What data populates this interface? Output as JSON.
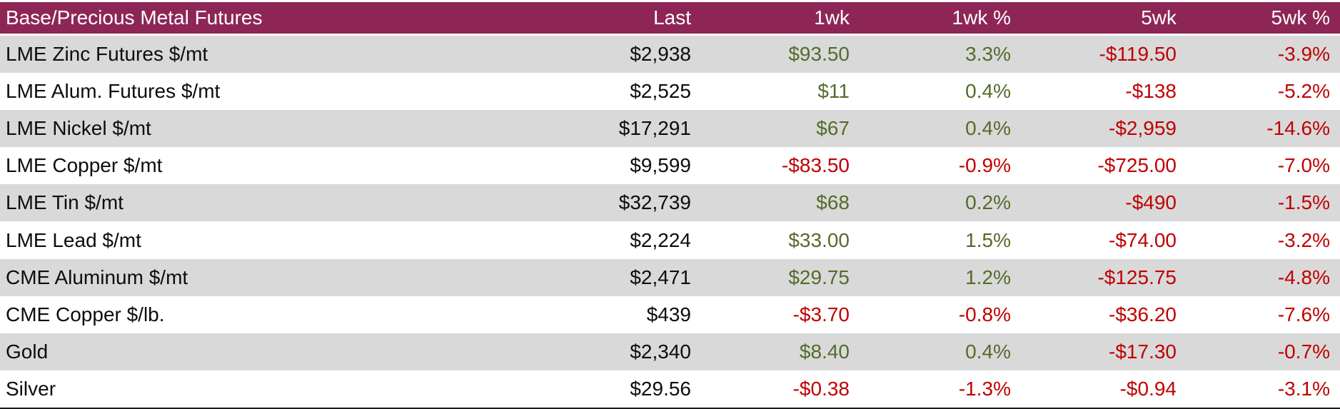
{
  "table": {
    "title": "Base/Precious Metal Futures",
    "columns": [
      "Last",
      "1wk",
      "1wk %",
      "5wk",
      "5wk %"
    ],
    "rows": [
      {
        "label": "LME Zinc Futures $/mt",
        "last": "$2,938",
        "wk1": "$93.50",
        "wk1_pct": "3.3%",
        "wk5": "-$119.50",
        "wk5_pct": "-3.9%"
      },
      {
        "label": "LME Alum. Futures $/mt",
        "last": "$2,525",
        "wk1": "$11",
        "wk1_pct": "0.4%",
        "wk5": "-$138",
        "wk5_pct": "-5.2%"
      },
      {
        "label": "LME Nickel $/mt",
        "last": "$17,291",
        "wk1": "$67",
        "wk1_pct": "0.4%",
        "wk5": "-$2,959",
        "wk5_pct": "-14.6%"
      },
      {
        "label": "LME Copper $/mt",
        "last": "$9,599",
        "wk1": "-$83.50",
        "wk1_pct": "-0.9%",
        "wk5": "-$725.00",
        "wk5_pct": "-7.0%"
      },
      {
        "label": "LME Tin $/mt",
        "last": "$32,739",
        "wk1": "$68",
        "wk1_pct": "0.2%",
        "wk5": "-$490",
        "wk5_pct": "-1.5%"
      },
      {
        "label": "LME Lead $/mt",
        "last": "$2,224",
        "wk1": "$33.00",
        "wk1_pct": "1.5%",
        "wk5": "-$74.00",
        "wk5_pct": "-3.2%"
      },
      {
        "label": "CME Aluminum $/mt",
        "last": "$2,471",
        "wk1": "$29.75",
        "wk1_pct": "1.2%",
        "wk5": "-$125.75",
        "wk5_pct": "-4.8%"
      },
      {
        "label": "CME Copper $/lb.",
        "last": "$439",
        "wk1": "-$3.70",
        "wk1_pct": "-0.8%",
        "wk5": "-$36.20",
        "wk5_pct": "-7.6%"
      },
      {
        "label": "Gold",
        "last": "$2,340",
        "wk1": "$8.40",
        "wk1_pct": "0.4%",
        "wk5": "-$17.30",
        "wk5_pct": "-0.7%"
      },
      {
        "label": "Silver",
        "last": "$29.56",
        "wk1": "-$0.38",
        "wk1_pct": "-1.3%",
        "wk5": "-$0.94",
        "wk5_pct": "-3.1%"
      }
    ]
  },
  "colors": {
    "header_bg": "#8E2655",
    "alt_row_bg": "#D9D9D9",
    "positive_text": "#556B2B",
    "negative_text": "#C00000"
  },
  "chart_data": {
    "type": "table",
    "title": "Base/Precious Metal Futures",
    "columns": [
      "Last",
      "1wk",
      "1wk %",
      "5wk",
      "5wk %"
    ],
    "rows": [
      {
        "name": "LME Zinc Futures $/mt",
        "last": 2938,
        "wk1": 93.5,
        "wk1_pct": 3.3,
        "wk5": -119.5,
        "wk5_pct": -3.9
      },
      {
        "name": "LME Alum. Futures $/mt",
        "last": 2525,
        "wk1": 11,
        "wk1_pct": 0.4,
        "wk5": -138,
        "wk5_pct": -5.2
      },
      {
        "name": "LME Nickel $/mt",
        "last": 17291,
        "wk1": 67,
        "wk1_pct": 0.4,
        "wk5": -2959,
        "wk5_pct": -14.6
      },
      {
        "name": "LME Copper $/mt",
        "last": 9599,
        "wk1": -83.5,
        "wk1_pct": -0.9,
        "wk5": -725.0,
        "wk5_pct": -7.0
      },
      {
        "name": "LME Tin $/mt",
        "last": 32739,
        "wk1": 68,
        "wk1_pct": 0.2,
        "wk5": -490,
        "wk5_pct": -1.5
      },
      {
        "name": "LME Lead $/mt",
        "last": 2224,
        "wk1": 33.0,
        "wk1_pct": 1.5,
        "wk5": -74.0,
        "wk5_pct": -3.2
      },
      {
        "name": "CME Aluminum $/mt",
        "last": 2471,
        "wk1": 29.75,
        "wk1_pct": 1.2,
        "wk5": -125.75,
        "wk5_pct": -4.8
      },
      {
        "name": "CME Copper $/lb.",
        "last": 439,
        "wk1": -3.7,
        "wk1_pct": -0.8,
        "wk5": -36.2,
        "wk5_pct": -7.6
      },
      {
        "name": "Gold",
        "last": 2340,
        "wk1": 8.4,
        "wk1_pct": 0.4,
        "wk5": -17.3,
        "wk5_pct": -0.7
      },
      {
        "name": "Silver",
        "last": 29.56,
        "wk1": -0.38,
        "wk1_pct": -1.3,
        "wk5": -0.94,
        "wk5_pct": -3.1
      }
    ]
  }
}
